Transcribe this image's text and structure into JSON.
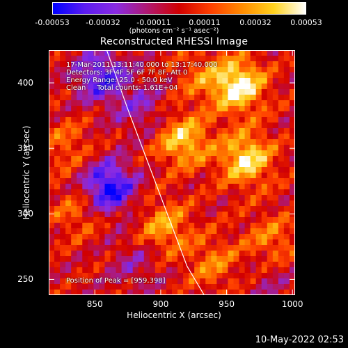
{
  "colorbar": {
    "ticks": [
      "-0.00053",
      "-0.00032",
      "-0.00011",
      "0.00011",
      "0.00032",
      "0.00053"
    ],
    "units_label": "(photons cm⁻² s⁻¹ asec⁻²)",
    "colors": [
      "#0000ff",
      "#5b1cf0",
      "#8a2be2",
      "#b01870",
      "#d10000",
      "#ff4000",
      "#ff8c00",
      "#ffd21e",
      "#ffffff"
    ]
  },
  "annotations": {
    "line1": "17-Mar-2011 13:11:40.000 to 13:17:40.000",
    "line2": "Detectors: 3F 4F 5F 6F 7F 8F, Att 0",
    "line3": "Energy Range: 25.0 - 50.0 keV",
    "line4": "Clean     Total counts: 1.61E+04",
    "peak": "Position of Peak = [959,398]"
  },
  "footer": {
    "date": "10-May-2022 02:53"
  },
  "chart_data": {
    "type": "heatmap",
    "title": "Reconstructed RHESSI Image",
    "xlabel": "Heliocentric X (arcsec)",
    "ylabel": "Heliocentric Y (arcsec)",
    "xlim": [
      815,
      1002
    ],
    "ylim": [
      238,
      425
    ],
    "xticks": [
      850,
      900,
      950,
      1000
    ],
    "yticks": [
      250,
      300,
      350,
      400
    ],
    "colorbar_range": [
      -0.00053,
      0.00053
    ],
    "peak": [
      959,
      398
    ],
    "limb_line": {
      "x": [
        859,
        875,
        890,
        905,
        920,
        933
      ],
      "y": [
        425,
        380,
        340,
        300,
        260,
        238
      ]
    },
    "sources": [
      {
        "x": 959,
        "y": 398,
        "value": 0.00053
      },
      {
        "x": 965,
        "y": 342,
        "value": 0.00046
      },
      {
        "x": 917,
        "y": 356,
        "value": 0.0004
      },
      {
        "x": 903,
        "y": 290,
        "value": 0.0003
      },
      {
        "x": 940,
        "y": 262,
        "value": 0.00022
      },
      {
        "x": 829,
        "y": 352,
        "value": 0.00018
      },
      {
        "x": 838,
        "y": 302,
        "value": 0.0002
      },
      {
        "x": 930,
        "y": 405,
        "value": 0.00018
      },
      {
        "x": 984,
        "y": 280,
        "value": 0.00022
      },
      {
        "x": 860,
        "y": 320,
        "value": -0.00053
      },
      {
        "x": 855,
        "y": 405,
        "value": -0.0004
      },
      {
        "x": 885,
        "y": 380,
        "value": -0.0002
      },
      {
        "x": 880,
        "y": 262,
        "value": -0.00015
      },
      {
        "x": 982,
        "y": 248,
        "value": -0.0001
      }
    ]
  }
}
